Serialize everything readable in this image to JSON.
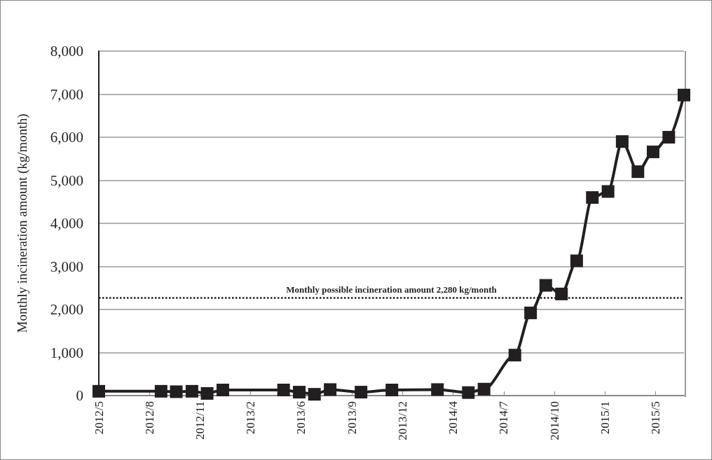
{
  "chart_data": {
    "type": "line",
    "ylabel": "Monthly incineration amount (kg/month)",
    "x": [
      "2012-05-01",
      "2012-09-01",
      "2012-10-01",
      "2012-11-01",
      "2012-12-01",
      "2013-01-01",
      "2013-05-01",
      "2013-06-01",
      "2013-07-01",
      "2013-08-01",
      "2013-10-01",
      "2013-12-01",
      "2014-03-01",
      "2014-05-01",
      "2014-06-01",
      "2014-08-01",
      "2014-09-01",
      "2014-10-01",
      "2014-11-01",
      "2014-12-01",
      "2015-01-01",
      "2015-02-01",
      "2015-03-01",
      "2015-04-01",
      "2015-05-01",
      "2015-06-01",
      "2015-07-01"
    ],
    "series": [
      {
        "color": "#231f20",
        "values": [
          100,
          100,
          90,
          100,
          50,
          130,
          130,
          80,
          30,
          140,
          80,
          130,
          140,
          70,
          150,
          940,
          1920,
          2560,
          2360,
          3130,
          4600,
          4740,
          5900,
          5200,
          5660,
          6000,
          6980
        ]
      }
    ],
    "xlim": [
      "2012-05-01",
      "2015-07-01"
    ],
    "xticks": [
      {
        "value": "2012-05-01",
        "label": "2012/5"
      },
      {
        "value": "2012-08-09",
        "label": "2012/8"
      },
      {
        "value": "2012-11-17",
        "label": "2012/11"
      },
      {
        "value": "2013-02-25",
        "label": "2013/2"
      },
      {
        "value": "2013-06-05",
        "label": "2013/6"
      },
      {
        "value": "2013-09-13",
        "label": "2013/9"
      },
      {
        "value": "2013-12-22",
        "label": "2013/12"
      },
      {
        "value": "2014-04-01",
        "label": "2014/4"
      },
      {
        "value": "2014-07-10",
        "label": "2014/7"
      },
      {
        "value": "2014-10-18",
        "label": "2014/10"
      },
      {
        "value": "2015-01-26",
        "label": "2015/1"
      },
      {
        "value": "2015-05-06",
        "label": "2015/5"
      }
    ],
    "ylim": [
      0,
      8000
    ],
    "yticks": [
      {
        "value": 0,
        "label": "0"
      },
      {
        "value": 1000,
        "label": "1,000"
      },
      {
        "value": 2000,
        "label": "2,000"
      },
      {
        "value": 3000,
        "label": "3,000"
      },
      {
        "value": 4000,
        "label": "4,000"
      },
      {
        "value": 5000,
        "label": "5,000"
      },
      {
        "value": 6000,
        "label": "6,000"
      },
      {
        "value": 7000,
        "label": "7,000"
      },
      {
        "value": 8000,
        "label": "8,000"
      }
    ],
    "ref_lines": [
      {
        "axis": "y",
        "value": 2280,
        "label": "Monthly possible incineration amount 2,280 kg/month",
        "color": "#231f20",
        "line_style": "dotted"
      }
    ],
    "grid": "y",
    "marker": "square",
    "line_style": "solid"
  }
}
